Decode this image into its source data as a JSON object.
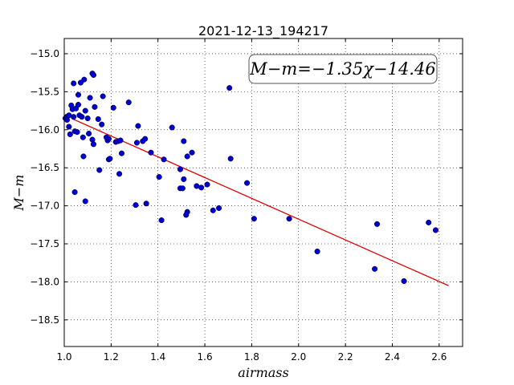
{
  "chart_data": {
    "type": "scatter",
    "title": "2021-12-13_194217",
    "xlabel": "airmass",
    "ylabel": "M−m",
    "xlim": [
      1.0,
      2.7
    ],
    "ylim": [
      -18.85,
      -14.8
    ],
    "y_inverted": true,
    "xticks": [
      1.0,
      1.2,
      1.4,
      1.6,
      1.8,
      2.0,
      2.2,
      2.4,
      2.6
    ],
    "xtick_labels": [
      "1.0",
      "1.2",
      "1.4",
      "1.6",
      "1.8",
      "2.0",
      "2.2",
      "2.4",
      "2.6"
    ],
    "yticks": [
      -15.0,
      -15.5,
      -16.0,
      -16.5,
      -17.0,
      -17.5,
      -18.0,
      -18.5
    ],
    "ytick_labels": [
      "−15.0",
      "−15.5",
      "−16.0",
      "−16.5",
      "−17.0",
      "−17.5",
      "−18.0",
      "−18.5"
    ],
    "grid": true,
    "annotation": "M−m=−1.35χ−14.46",
    "point_color": "#0000cc",
    "fit_color": "#dd0000",
    "fit_line": {
      "x": [
        1.03,
        2.64
      ],
      "y": [
        -15.85,
        -18.05
      ]
    },
    "points": [
      [
        1.005,
        -15.85
      ],
      [
        1.01,
        -15.83
      ],
      [
        1.012,
        -15.87
      ],
      [
        1.02,
        -15.81
      ],
      [
        1.02,
        -15.96
      ],
      [
        1.025,
        -16.06
      ],
      [
        1.03,
        -15.68
      ],
      [
        1.035,
        -15.73
      ],
      [
        1.04,
        -15.39
      ],
      [
        1.04,
        -15.83
      ],
      [
        1.045,
        -16.02
      ],
      [
        1.045,
        -16.82
      ],
      [
        1.05,
        -15.72
      ],
      [
        1.055,
        -16.03
      ],
      [
        1.06,
        -15.54
      ],
      [
        1.06,
        -15.67
      ],
      [
        1.065,
        -15.81
      ],
      [
        1.07,
        -15.38
      ],
      [
        1.075,
        -15.83
      ],
      [
        1.08,
        -16.1
      ],
      [
        1.082,
        -16.35
      ],
      [
        1.085,
        -15.34
      ],
      [
        1.09,
        -15.75
      ],
      [
        1.09,
        -16.94
      ],
      [
        1.1,
        -15.85
      ],
      [
        1.105,
        -16.05
      ],
      [
        1.11,
        -15.58
      ],
      [
        1.12,
        -15.26
      ],
      [
        1.12,
        -16.13
      ],
      [
        1.125,
        -15.28
      ],
      [
        1.125,
        -16.19
      ],
      [
        1.13,
        -15.7
      ],
      [
        1.145,
        -15.86
      ],
      [
        1.15,
        -16.53
      ],
      [
        1.16,
        -15.93
      ],
      [
        1.165,
        -15.56
      ],
      [
        1.18,
        -16.1
      ],
      [
        1.185,
        -16.14
      ],
      [
        1.19,
        -16.12
      ],
      [
        1.19,
        -16.39
      ],
      [
        1.195,
        -16.38
      ],
      [
        1.21,
        -15.71
      ],
      [
        1.22,
        -16.16
      ],
      [
        1.23,
        -16.15
      ],
      [
        1.235,
        -16.58
      ],
      [
        1.24,
        -16.14
      ],
      [
        1.245,
        -16.31
      ],
      [
        1.275,
        -15.64
      ],
      [
        1.305,
        -16.99
      ],
      [
        1.31,
        -16.17
      ],
      [
        1.315,
        -15.95
      ],
      [
        1.335,
        -16.15
      ],
      [
        1.345,
        -16.12
      ],
      [
        1.35,
        -16.97
      ],
      [
        1.37,
        -16.3
      ],
      [
        1.405,
        -16.62
      ],
      [
        1.415,
        -17.19
      ],
      [
        1.425,
        -16.39
      ],
      [
        1.46,
        -15.97
      ],
      [
        1.495,
        -16.52
      ],
      [
        1.495,
        -16.77
      ],
      [
        1.505,
        -16.77
      ],
      [
        1.51,
        -16.65
      ],
      [
        1.51,
        -16.15
      ],
      [
        1.52,
        -17.12
      ],
      [
        1.525,
        -16.35
      ],
      [
        1.525,
        -17.08
      ],
      [
        1.545,
        -16.3
      ],
      [
        1.565,
        -16.74
      ],
      [
        1.585,
        -16.76
      ],
      [
        1.61,
        -16.72
      ],
      [
        1.635,
        -17.06
      ],
      [
        1.66,
        -17.03
      ],
      [
        1.705,
        -15.45
      ],
      [
        1.71,
        -16.38
      ],
      [
        1.78,
        -16.7
      ],
      [
        1.81,
        -17.17
      ],
      [
        1.96,
        -17.17
      ],
      [
        2.08,
        -17.6
      ],
      [
        2.325,
        -17.83
      ],
      [
        2.335,
        -17.24
      ],
      [
        2.45,
        -17.99
      ],
      [
        2.555,
        -17.22
      ],
      [
        2.585,
        -17.32
      ]
    ]
  }
}
